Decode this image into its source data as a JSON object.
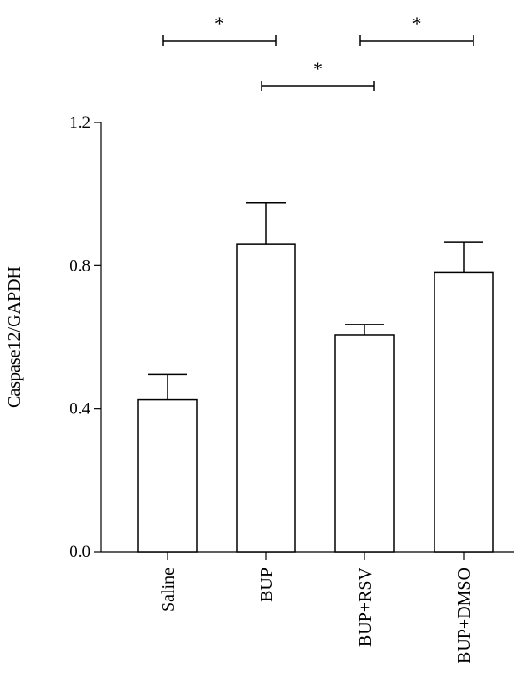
{
  "chart_data": {
    "type": "bar",
    "categories": [
      "Saline",
      "BUP",
      "BUP+RSV",
      "BUP+DMSO"
    ],
    "values": [
      0.425,
      0.86,
      0.605,
      0.78
    ],
    "errors": [
      0.07,
      0.115,
      0.03,
      0.085
    ],
    "ylabel": "Caspase12/GAPDH",
    "ylim": [
      0,
      1.2
    ],
    "yticks": [
      "0.0",
      "0.4",
      "0.8",
      "1.2"
    ],
    "significance": [
      {
        "from": 0,
        "to": 1,
        "label": "*"
      },
      {
        "from": 1,
        "to": 2,
        "label": "*"
      },
      {
        "from": 2,
        "to": 3,
        "label": "*"
      }
    ]
  }
}
